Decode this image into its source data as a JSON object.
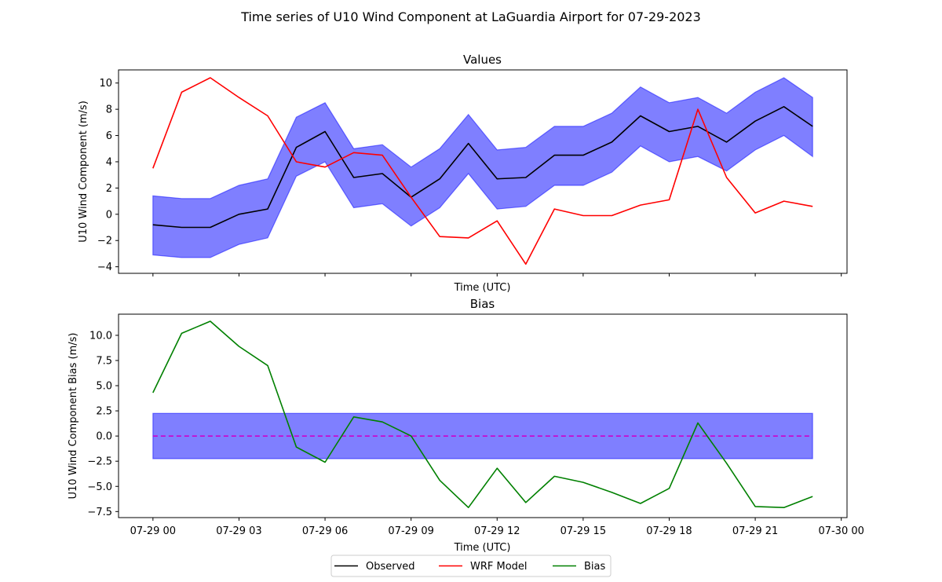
{
  "figure": {
    "title": "Time series of U10 Wind Component at LaGuardia Airport for 07-29-2023"
  },
  "chart_data": [
    {
      "type": "line",
      "title": "Values",
      "xlabel": "Time (UTC)",
      "ylabel": "U10 Wind Component (m/s)",
      "x_hours": [
        0,
        1,
        2,
        3,
        4,
        5,
        6,
        7,
        8,
        9,
        10,
        11,
        12,
        13,
        14,
        15,
        16,
        17,
        18,
        19,
        20,
        21,
        22,
        23
      ],
      "xlim_hours": [
        -1.2,
        24.2
      ],
      "ylim": [
        -4.5,
        11.0
      ],
      "yticks": [
        -4,
        -2,
        0,
        2,
        4,
        6,
        8,
        10
      ],
      "show_xtick_labels": false,
      "grid": false,
      "series": [
        {
          "name": "Observed",
          "color": "#000000",
          "values": [
            -0.8,
            -1.0,
            -1.0,
            0.0,
            0.4,
            5.1,
            6.3,
            2.8,
            3.1,
            1.3,
            2.7,
            5.4,
            2.7,
            2.8,
            4.5,
            4.5,
            5.5,
            7.5,
            6.3,
            6.7,
            5.5,
            7.1,
            8.2,
            6.7
          ],
          "band_lower": [
            -3.1,
            -3.3,
            -3.3,
            -2.3,
            -1.8,
            2.9,
            4.0,
            0.5,
            0.8,
            -0.9,
            0.5,
            3.1,
            0.4,
            0.6,
            2.2,
            2.2,
            3.2,
            5.2,
            4.0,
            4.4,
            3.3,
            4.9,
            6.0,
            4.4
          ],
          "band_upper": [
            1.4,
            1.2,
            1.2,
            2.2,
            2.7,
            7.4,
            8.5,
            5.0,
            5.3,
            3.6,
            5.0,
            7.6,
            4.9,
            5.1,
            6.7,
            6.7,
            7.7,
            9.7,
            8.5,
            8.9,
            7.7,
            9.3,
            10.4,
            8.9
          ],
          "band_color": "#0000ff"
        },
        {
          "name": "WRF Model",
          "color": "#ff0000",
          "values": [
            3.5,
            9.3,
            10.4,
            8.9,
            7.5,
            4.0,
            3.6,
            4.7,
            4.5,
            1.3,
            -1.7,
            -1.8,
            -0.5,
            -3.8,
            0.4,
            -0.1,
            -0.1,
            0.7,
            1.1,
            8.0,
            2.8,
            0.1,
            1.0,
            0.6
          ]
        }
      ]
    },
    {
      "type": "line",
      "title": "Bias",
      "xlabel": "Time (UTC)",
      "ylabel": "U10 Wind Component Bias (m/s)",
      "x_hours": [
        0,
        1,
        2,
        3,
        4,
        5,
        6,
        7,
        8,
        9,
        10,
        11,
        12,
        13,
        14,
        15,
        16,
        17,
        18,
        19,
        20,
        21,
        22,
        23
      ],
      "xlim_hours": [
        -1.2,
        24.2
      ],
      "ylim": [
        -8.1,
        12.1
      ],
      "yticks": [
        -7.5,
        -5.0,
        -2.5,
        0.0,
        2.5,
        5.0,
        7.5,
        10.0
      ],
      "ytick_labels": [
        "−7.5",
        "−5.0",
        "−2.5",
        "0.0",
        "2.5",
        "5.0",
        "7.5",
        "10.0"
      ],
      "xticks_hours": [
        0,
        3,
        6,
        9,
        12,
        15,
        18,
        21,
        24
      ],
      "xtick_labels": [
        "07-29 00",
        "07-29 03",
        "07-29 06",
        "07-29 09",
        "07-29 12",
        "07-29 15",
        "07-29 18",
        "07-29 21",
        "07-30 00"
      ],
      "grid": false,
      "zero_line": {
        "value": 0.0,
        "color": "#cc00cc",
        "style": "dashed"
      },
      "band": {
        "lower": -2.25,
        "upper": 2.25,
        "color": "#0000ff",
        "x_from_hours": 0,
        "x_to_hours": 23
      },
      "series": [
        {
          "name": "Bias",
          "color": "#008000",
          "values": [
            4.3,
            10.2,
            11.4,
            8.9,
            7.0,
            -1.1,
            -2.6,
            1.9,
            1.4,
            0.0,
            -4.4,
            -7.1,
            -3.2,
            -6.6,
            -4.0,
            -4.6,
            -5.6,
            -6.7,
            -5.2,
            1.3,
            -2.7,
            -7.0,
            -7.1,
            -6.0
          ]
        }
      ]
    }
  ],
  "legend": {
    "placement": "bottom-center",
    "entries": [
      {
        "label": "Observed",
        "color": "#000000"
      },
      {
        "label": "WRF Model",
        "color": "#ff0000"
      },
      {
        "label": "Bias",
        "color": "#008000"
      }
    ]
  }
}
